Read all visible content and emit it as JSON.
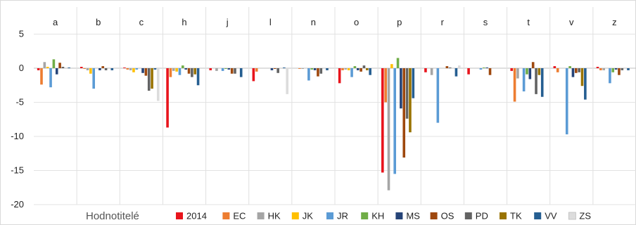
{
  "chart_data": {
    "type": "bar",
    "panels": [
      "a",
      "b",
      "c",
      "h",
      "j",
      "l",
      "n",
      "o",
      "p",
      "r",
      "s",
      "t",
      "v",
      "z"
    ],
    "ylim": [
      -20,
      6
    ],
    "yticks": [
      "5",
      "0",
      "-5",
      "-10",
      "-15",
      "-20"
    ],
    "ytick_values": [
      5,
      0,
      -5,
      -10,
      -15,
      -20
    ],
    "legend_title": "Hodnotitelé",
    "grid": true,
    "series": [
      {
        "name": "2014",
        "color": "#e8141c",
        "values": [
          -0.3,
          0.2,
          0.1,
          -8.7,
          -0.3,
          -1.9,
          0.0,
          -2.2,
          -15.3,
          -0.6,
          -0.9,
          -0.4,
          0.3,
          0.2
        ]
      },
      {
        "name": "EC",
        "color": "#ed7d31",
        "values": [
          -2.4,
          -0.1,
          -0.2,
          -1.3,
          0.0,
          -0.5,
          -0.1,
          -0.3,
          -5.0,
          0.0,
          0.0,
          -4.9,
          -0.6,
          -0.3
        ]
      },
      {
        "name": "HK",
        "color": "#a5a5a5",
        "values": [
          0.9,
          -0.3,
          -0.3,
          -0.4,
          -0.4,
          0.0,
          -0.1,
          -0.2,
          -17.9,
          -1.0,
          0.0,
          -1.5,
          0.0,
          -0.3
        ]
      },
      {
        "name": "JK",
        "color": "#ffc000",
        "values": [
          0.2,
          -0.8,
          -0.6,
          -0.5,
          0.0,
          0.0,
          0.0,
          -0.3,
          0.6,
          0.0,
          0.0,
          0.0,
          0.0,
          0.0
        ]
      },
      {
        "name": "JR",
        "color": "#5b9bd5",
        "values": [
          -2.8,
          -3.0,
          -0.2,
          -1.0,
          -0.4,
          0.0,
          -1.8,
          -1.3,
          -15.5,
          -8.0,
          -0.2,
          -3.4,
          -9.7,
          -2.2
        ]
      },
      {
        "name": "KH",
        "color": "#70ad47",
        "values": [
          1.3,
          0.0,
          0.0,
          0.4,
          -0.1,
          0.0,
          -0.2,
          0.3,
          1.5,
          0.0,
          0.1,
          -0.9,
          0.3,
          -0.6
        ]
      },
      {
        "name": "MS",
        "color": "#264478",
        "values": [
          -0.9,
          -0.3,
          -0.7,
          -0.2,
          -0.2,
          -0.3,
          -0.3,
          -0.3,
          -5.9,
          0.0,
          0.1,
          -1.6,
          -1.3,
          -0.2
        ]
      },
      {
        "name": "OS",
        "color": "#9e480e",
        "values": [
          0.8,
          0.3,
          -1.1,
          -0.8,
          -0.8,
          -0.1,
          -1.2,
          -0.5,
          -13.1,
          0.3,
          -1.0,
          0.9,
          -0.7,
          -1.0
        ]
      },
      {
        "name": "PD",
        "color": "#636363",
        "values": [
          0.2,
          -0.3,
          -3.3,
          -1.3,
          -0.8,
          -0.7,
          -0.8,
          0.4,
          -7.4,
          0.1,
          0.0,
          -3.8,
          -0.6,
          -0.3
        ]
      },
      {
        "name": "TK",
        "color": "#997300",
        "values": [
          0.0,
          0.0,
          -3.0,
          -0.9,
          0.0,
          0.0,
          0.0,
          -0.3,
          -9.4,
          0.0,
          0.0,
          -1.0,
          -2.6,
          0.0
        ]
      },
      {
        "name": "VV",
        "color": "#255e91",
        "values": [
          0.1,
          -0.3,
          -0.2,
          -2.5,
          -1.3,
          0.1,
          -0.3,
          -1.0,
          -4.4,
          -1.2,
          0.0,
          -4.2,
          -4.6,
          -0.3
        ]
      },
      {
        "name": "ZS",
        "color": "#dcdcdc",
        "values": [
          0.1,
          0.0,
          -4.8,
          0.0,
          0.0,
          -3.8,
          0.0,
          0.0,
          0.1,
          0.4,
          0.0,
          0.0,
          0.0,
          0.0
        ]
      }
    ]
  }
}
